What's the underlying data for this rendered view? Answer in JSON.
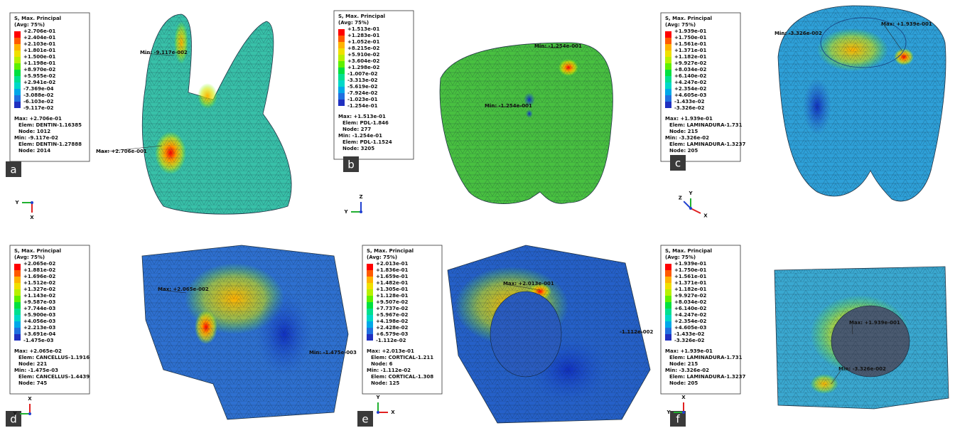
{
  "panels": [
    {
      "letter": "a",
      "legend": {
        "title": "S, Max. Principal",
        "subtitle": "(Avg: 75%)",
        "levels": [
          "+2.706e-01",
          "+2.404e-01",
          "+2.103e-01",
          "+1.801e-01",
          "+1.500e-01",
          "+1.198e-01",
          "+8.970e-02",
          "+5.955e-02",
          "+2.941e-02",
          "-7.369e-04",
          "-3.088e-02",
          "-6.103e-02",
          "-9.117e-02"
        ]
      },
      "info": [
        "Max: +2.706e-01",
        "Elem: DENTIN-1.16385",
        "Node: 1012",
        "Min: -9.117e-02",
        "Elem: DENTIN-1.27888",
        "Node: 2014"
      ],
      "annotations": [
        "Max: +2.706e-001",
        "Min: -9.117e-002"
      ],
      "axes": [
        "Y",
        "X"
      ]
    },
    {
      "letter": "b",
      "legend": {
        "title": "S, Max. Principal",
        "subtitle": "(Avg: 75%)",
        "levels": [
          "+1.513e-01",
          "+1.283e-01",
          "+1.052e-01",
          "+8.215e-02",
          "+5.910e-02",
          "+3.604e-02",
          "+1.298e-02",
          "-1.007e-02",
          "-3.313e-02",
          "-5.619e-02",
          "-7.924e-02",
          "-1.023e-01",
          "-1.254e-01"
        ]
      },
      "info": [
        "Max: +1.513e-01",
        "Elem: PDL-1.846",
        "Node: 277",
        "Min: -1.254e-01",
        "Elem: PDL-1.1524",
        "Node: 3205"
      ],
      "annotations": [
        "Min: -1.254e-001",
        "Min: -1.254e-001"
      ],
      "axes": [
        "Z",
        "Y"
      ]
    },
    {
      "letter": "c",
      "legend": {
        "title": "S, Max. Principal",
        "subtitle": "(Avg: 75%)",
        "levels": [
          "+1.939e-01",
          "+1.750e-01",
          "+1.561e-01",
          "+1.371e-01",
          "+1.182e-01",
          "+9.927e-02",
          "+8.034e-02",
          "+6.140e-02",
          "+4.247e-02",
          "+2.354e-02",
          "+4.605e-03",
          "-1.433e-02",
          "-3.326e-02"
        ]
      },
      "info": [
        "Max: +1.939e-01",
        "Elem: LAMINADURA-1.731",
        "Node: 215",
        "Min: -3.326e-02",
        "Elem: LAMINADURA-1.3237",
        "Node: 205"
      ],
      "annotations": [
        "Min: -3.326e-002",
        "Max: +1.939e-001"
      ],
      "axes": [
        "Z",
        "Y",
        "X"
      ]
    },
    {
      "letter": "d",
      "legend": {
        "title": "S, Max. Principal",
        "subtitle": "(Avg: 75%)",
        "levels": [
          "+2.065e-02",
          "+1.881e-02",
          "+1.696e-02",
          "+1.512e-02",
          "+1.327e-02",
          "+1.143e-02",
          "+9.587e-03",
          "+7.744e-03",
          "+5.900e-03",
          "+4.056e-03",
          "+2.213e-03",
          "+3.691e-04",
          "-1.475e-03"
        ]
      },
      "info": [
        "Max: +2.065e-02",
        "Elem: CANCELLUS-1.1916",
        "Node: 221",
        "Min: -1.475e-03",
        "Elem: CANCELLUS-1.4439",
        "Node: 745"
      ],
      "annotations": [
        "Max: +2.065e-002",
        "Min: -1.475e-003"
      ],
      "axes": [
        "X",
        "Y"
      ]
    },
    {
      "letter": "e",
      "legend": {
        "title": "S, Max. Principal",
        "subtitle": "(Avg: 75%)",
        "levels": [
          "+2.013e-01",
          "+1.836e-01",
          "+1.659e-01",
          "+1.482e-01",
          "+1.305e-01",
          "+1.128e-01",
          "+9.507e-02",
          "+7.737e-02",
          "+5.967e-02",
          "+4.198e-02",
          "+2.428e-02",
          "+6.579e-03",
          "-1.112e-02"
        ]
      },
      "info": [
        "Max: +2.013e-01",
        "Elem: CORTICAL-1.211",
        "Node: 6",
        "Min: -1.112e-02",
        "Elem: CORTICAL-1.308",
        "Node: 125"
      ],
      "annotations": [
        "Max: +2.013e-001",
        "-1.112e-002"
      ],
      "axes": [
        "Y",
        "X"
      ]
    },
    {
      "letter": "f",
      "legend": {
        "title": "S, Max. Principal",
        "subtitle": "(Avg: 75%)",
        "levels": [
          "+1.939e-01",
          "+1.750e-01",
          "+1.561e-01",
          "+1.371e-01",
          "+1.182e-01",
          "+9.927e-02",
          "+8.034e-02",
          "+6.140e-02",
          "+4.247e-02",
          "+2.354e-02",
          "+4.605e-03",
          "-1.433e-02",
          "-3.326e-02"
        ]
      },
      "info": [
        "Max: +1.939e-01",
        "Elem: LAMINADURA-1.731",
        "Node: 215",
        "Min: -3.326e-02",
        "Elem: LAMINADURA-1.3237",
        "Node: 205"
      ],
      "annotations": [
        "Max: +1.939e-001",
        "Min: -3.326e-002"
      ],
      "axes": [
        "X",
        "Y"
      ]
    }
  ]
}
